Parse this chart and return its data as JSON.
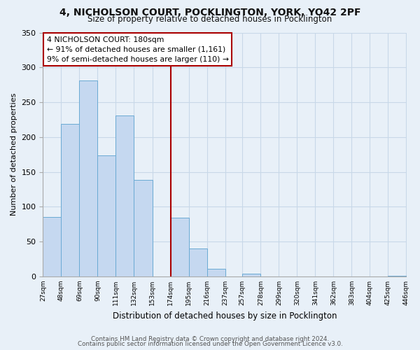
{
  "title": "4, NICHOLSON COURT, POCKLINGTON, YORK, YO42 2PF",
  "subtitle": "Size of property relative to detached houses in Pocklington",
  "xlabel": "Distribution of detached houses by size in Pocklington",
  "ylabel": "Number of detached properties",
  "bar_color": "#c5d8f0",
  "bar_edge_color": "#6aaad4",
  "grid_color": "#c8d8e8",
  "vline_color": "#aa0000",
  "annotation_title": "4 NICHOLSON COURT: 180sqm",
  "annotation_line1": "← 91% of detached houses are smaller (1,161)",
  "annotation_line2": "9% of semi-detached houses are larger (110) →",
  "annotation_box_facecolor": "#ffffff",
  "annotation_box_edgecolor": "#aa0000",
  "bins": [
    27,
    48,
    69,
    90,
    111,
    132,
    153,
    174,
    195,
    216,
    237,
    257,
    278,
    299,
    320,
    341,
    362,
    383,
    404,
    425,
    446
  ],
  "counts": [
    85,
    219,
    281,
    174,
    231,
    139,
    0,
    84,
    40,
    11,
    0,
    4,
    0,
    0,
    0,
    0,
    0,
    0,
    0,
    1
  ],
  "tick_labels": [
    "27sqm",
    "48sqm",
    "69sqm",
    "90sqm",
    "111sqm",
    "132sqm",
    "153sqm",
    "174sqm",
    "195sqm",
    "216sqm",
    "237sqm",
    "257sqm",
    "278sqm",
    "299sqm",
    "320sqm",
    "341sqm",
    "362sqm",
    "383sqm",
    "404sqm",
    "425sqm",
    "446sqm"
  ],
  "footer1": "Contains HM Land Registry data © Crown copyright and database right 2024.",
  "footer2": "Contains public sector information licensed under the Open Government Licence v3.0.",
  "ylim": [
    0,
    350
  ],
  "background_color": "#e8f0f8"
}
